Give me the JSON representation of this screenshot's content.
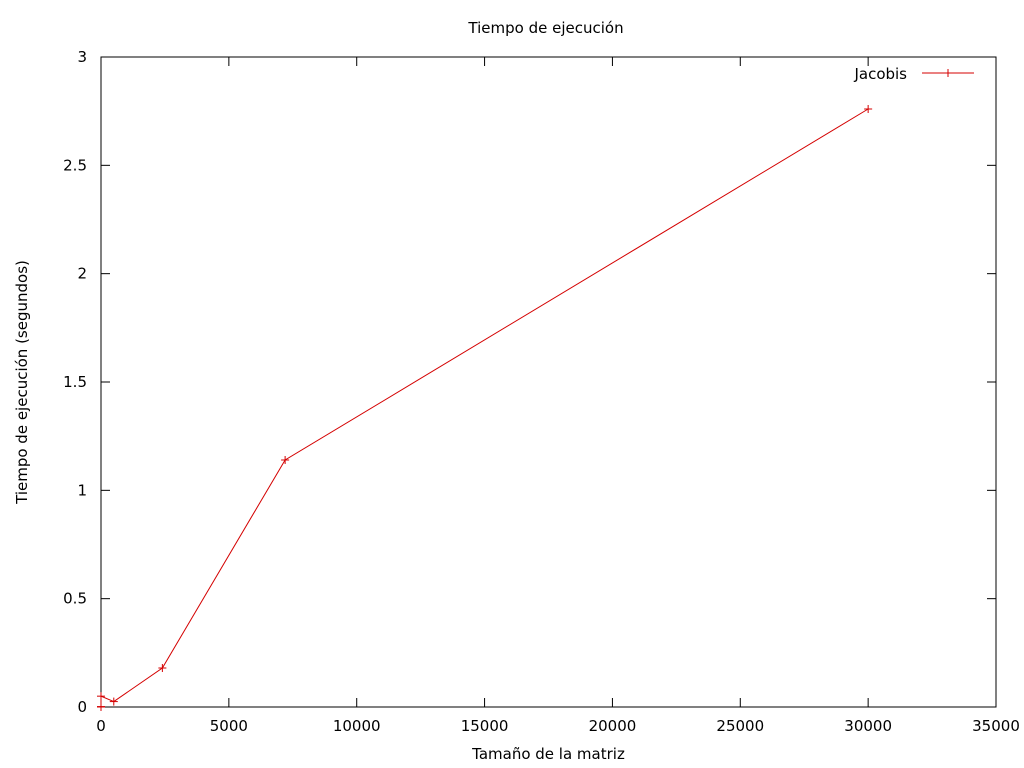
{
  "chart_data": {
    "type": "line",
    "title": "Tiempo de ejecución",
    "xlabel": "Tamaño de la matriz",
    "ylabel": "Tiempo de ejecución (segundos)",
    "xlim": [
      0,
      35000
    ],
    "ylim": [
      0,
      3
    ],
    "xticks": [
      0,
      5000,
      10000,
      15000,
      20000,
      25000,
      30000,
      35000
    ],
    "yticks": [
      0,
      0.5,
      1,
      1.5,
      2,
      2.5,
      3
    ],
    "xtick_labels": [
      "0",
      "5000",
      "10000",
      "15000",
      "20000",
      "25000",
      "30000",
      "35000"
    ],
    "ytick_labels": [
      "0",
      "0.5",
      "1",
      "1.5",
      "2",
      "2.5",
      "3"
    ],
    "grid": false,
    "legend_position": "top-right",
    "series": [
      {
        "name": "Jacobis",
        "color": "#d40000",
        "marker": "+",
        "x": [
          0,
          0,
          0,
          500,
          2400,
          7200,
          30000
        ],
        "y": [
          0,
          0.002,
          0.05,
          0.025,
          0.18,
          1.14,
          2.76
        ]
      }
    ]
  }
}
